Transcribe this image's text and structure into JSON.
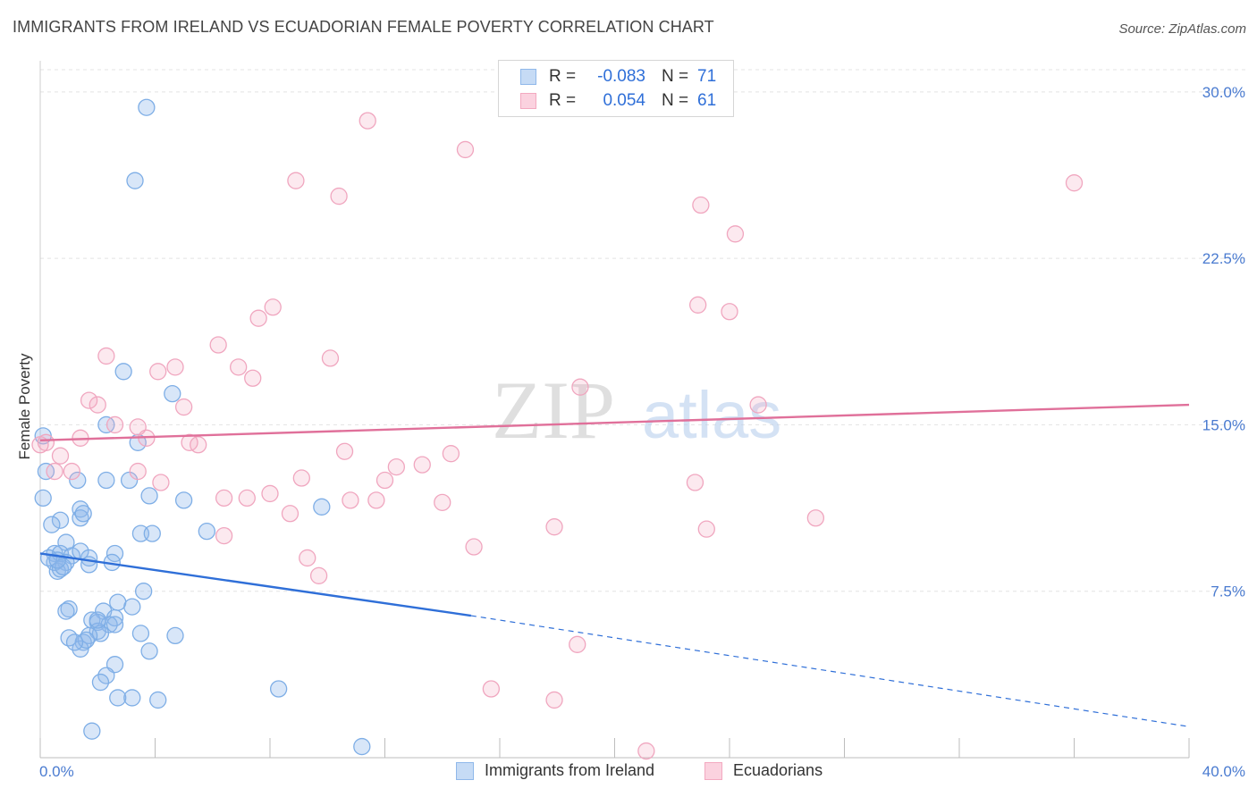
{
  "title": "IMMIGRANTS FROM IRELAND VS ECUADORIAN FEMALE POVERTY CORRELATION CHART",
  "source": "Source: ZipAtlas.com",
  "watermark": {
    "zip": "ZIP",
    "atlas": "atlas"
  },
  "colors": {
    "blue": "#8fb8ea",
    "blue_line": "#2f6fd8",
    "pink": "#f3a9c0",
    "pink_line": "#e0709a",
    "grid": "#e3e3e3"
  },
  "legend": {
    "rows": [
      {
        "r_label": "R =",
        "r_value": "-0.083",
        "n_label": "N =",
        "n_value": "71"
      },
      {
        "r_label": "R =",
        "r_value": "0.054",
        "n_label": "N =",
        "n_value": "61"
      }
    ]
  },
  "bottom_legend": {
    "series1": "Immigrants from Ireland",
    "series2": "Ecuadorians"
  },
  "chart_data": {
    "type": "scatter",
    "xlabel": "",
    "ylabel": "Female Poverty",
    "xlim": [
      0,
      40
    ],
    "ylim": [
      0,
      31
    ],
    "x_tick_labels": [
      "0.0%",
      "40.0%"
    ],
    "y_ticks": [
      7.5,
      15.0,
      22.5,
      30.0
    ],
    "y_tick_labels": [
      "7.5%",
      "15.0%",
      "22.5%",
      "30.0%"
    ],
    "series": [
      {
        "name": "Immigrants from Ireland",
        "trend": {
          "x0": 0,
          "y0": 9.2,
          "x1": 15,
          "y1": 6.4,
          "dash_to_x": 40,
          "dash_to_y": 1.4
        },
        "points": [
          [
            3.7,
            29.3
          ],
          [
            3.3,
            26.0
          ],
          [
            2.9,
            17.4
          ],
          [
            4.6,
            16.4
          ],
          [
            2.3,
            15.0
          ],
          [
            3.4,
            14.2
          ],
          [
            0.1,
            14.5
          ],
          [
            0.2,
            12.9
          ],
          [
            1.3,
            12.5
          ],
          [
            2.3,
            12.5
          ],
          [
            3.1,
            12.5
          ],
          [
            3.8,
            11.8
          ],
          [
            5.0,
            11.6
          ],
          [
            0.1,
            11.7
          ],
          [
            1.4,
            11.2
          ],
          [
            1.4,
            10.8
          ],
          [
            1.5,
            11.0
          ],
          [
            0.7,
            10.7
          ],
          [
            0.4,
            10.5
          ],
          [
            9.8,
            11.3
          ],
          [
            3.5,
            10.1
          ],
          [
            3.9,
            10.1
          ],
          [
            5.8,
            10.2
          ],
          [
            0.9,
            9.7
          ],
          [
            0.5,
            9.2
          ],
          [
            0.7,
            9.2
          ],
          [
            1.1,
            9.1
          ],
          [
            1.4,
            9.3
          ],
          [
            1.7,
            9.0
          ],
          [
            2.6,
            9.2
          ],
          [
            0.5,
            8.8
          ],
          [
            0.9,
            8.8
          ],
          [
            0.6,
            8.4
          ],
          [
            0.7,
            8.5
          ],
          [
            0.8,
            8.6
          ],
          [
            1.7,
            8.7
          ],
          [
            2.5,
            8.8
          ],
          [
            3.6,
            7.5
          ],
          [
            2.7,
            7.0
          ],
          [
            3.2,
            6.8
          ],
          [
            1.0,
            6.7
          ],
          [
            0.9,
            6.6
          ],
          [
            2.2,
            6.6
          ],
          [
            2.6,
            6.3
          ],
          [
            1.8,
            6.2
          ],
          [
            2.0,
            6.1
          ],
          [
            2.4,
            6.0
          ],
          [
            2.6,
            6.0
          ],
          [
            2.0,
            5.7
          ],
          [
            2.1,
            5.6
          ],
          [
            1.7,
            5.5
          ],
          [
            3.5,
            5.6
          ],
          [
            4.7,
            5.5
          ],
          [
            1.0,
            5.4
          ],
          [
            1.5,
            5.2
          ],
          [
            1.4,
            4.9
          ],
          [
            3.8,
            4.8
          ],
          [
            2.6,
            4.2
          ],
          [
            2.3,
            3.7
          ],
          [
            2.1,
            3.4
          ],
          [
            8.3,
            3.1
          ],
          [
            2.7,
            2.7
          ],
          [
            3.2,
            2.7
          ],
          [
            4.1,
            2.6
          ],
          [
            1.8,
            1.2
          ],
          [
            11.2,
            0.5
          ],
          [
            1.6,
            5.3
          ],
          [
            0.3,
            9.0
          ],
          [
            2.0,
            6.2
          ],
          [
            1.2,
            5.2
          ],
          [
            0.6,
            8.9
          ]
        ]
      },
      {
        "name": "Ecuadorians",
        "trend": {
          "x0": 0,
          "y0": 14.3,
          "x1": 40,
          "y1": 15.9
        },
        "points": [
          [
            11.4,
            28.7
          ],
          [
            14.8,
            27.4
          ],
          [
            8.9,
            26.0
          ],
          [
            10.4,
            25.3
          ],
          [
            36.0,
            25.9
          ],
          [
            23.0,
            24.9
          ],
          [
            24.2,
            23.6
          ],
          [
            8.1,
            20.3
          ],
          [
            7.6,
            19.8
          ],
          [
            22.9,
            20.4
          ],
          [
            24.0,
            20.1
          ],
          [
            6.2,
            18.6
          ],
          [
            2.3,
            18.1
          ],
          [
            10.1,
            18.0
          ],
          [
            6.9,
            17.6
          ],
          [
            4.7,
            17.6
          ],
          [
            4.1,
            17.4
          ],
          [
            7.4,
            17.1
          ],
          [
            18.8,
            16.7
          ],
          [
            1.7,
            16.1
          ],
          [
            2.0,
            15.9
          ],
          [
            5.0,
            15.8
          ],
          [
            25.0,
            15.9
          ],
          [
            2.6,
            15.0
          ],
          [
            3.4,
            14.9
          ],
          [
            3.7,
            14.4
          ],
          [
            1.4,
            14.4
          ],
          [
            0.2,
            14.2
          ],
          [
            5.2,
            14.2
          ],
          [
            5.5,
            14.1
          ],
          [
            0.7,
            13.6
          ],
          [
            10.6,
            13.8
          ],
          [
            14.3,
            13.7
          ],
          [
            12.4,
            13.1
          ],
          [
            13.3,
            13.2
          ],
          [
            1.1,
            12.9
          ],
          [
            0.5,
            12.9
          ],
          [
            3.4,
            12.9
          ],
          [
            9.1,
            12.6
          ],
          [
            4.2,
            12.4
          ],
          [
            12.0,
            12.5
          ],
          [
            22.8,
            12.4
          ],
          [
            8.0,
            11.9
          ],
          [
            6.4,
            11.7
          ],
          [
            7.2,
            11.7
          ],
          [
            10.8,
            11.6
          ],
          [
            11.7,
            11.6
          ],
          [
            14.0,
            11.5
          ],
          [
            8.7,
            11.0
          ],
          [
            27.0,
            10.8
          ],
          [
            17.9,
            10.4
          ],
          [
            23.2,
            10.3
          ],
          [
            6.4,
            10.0
          ],
          [
            15.1,
            9.5
          ],
          [
            9.3,
            9.0
          ],
          [
            9.7,
            8.2
          ],
          [
            18.7,
            5.1
          ],
          [
            15.7,
            3.1
          ],
          [
            17.9,
            2.6
          ],
          [
            21.1,
            0.3
          ],
          [
            0.0,
            14.1
          ]
        ]
      }
    ]
  }
}
